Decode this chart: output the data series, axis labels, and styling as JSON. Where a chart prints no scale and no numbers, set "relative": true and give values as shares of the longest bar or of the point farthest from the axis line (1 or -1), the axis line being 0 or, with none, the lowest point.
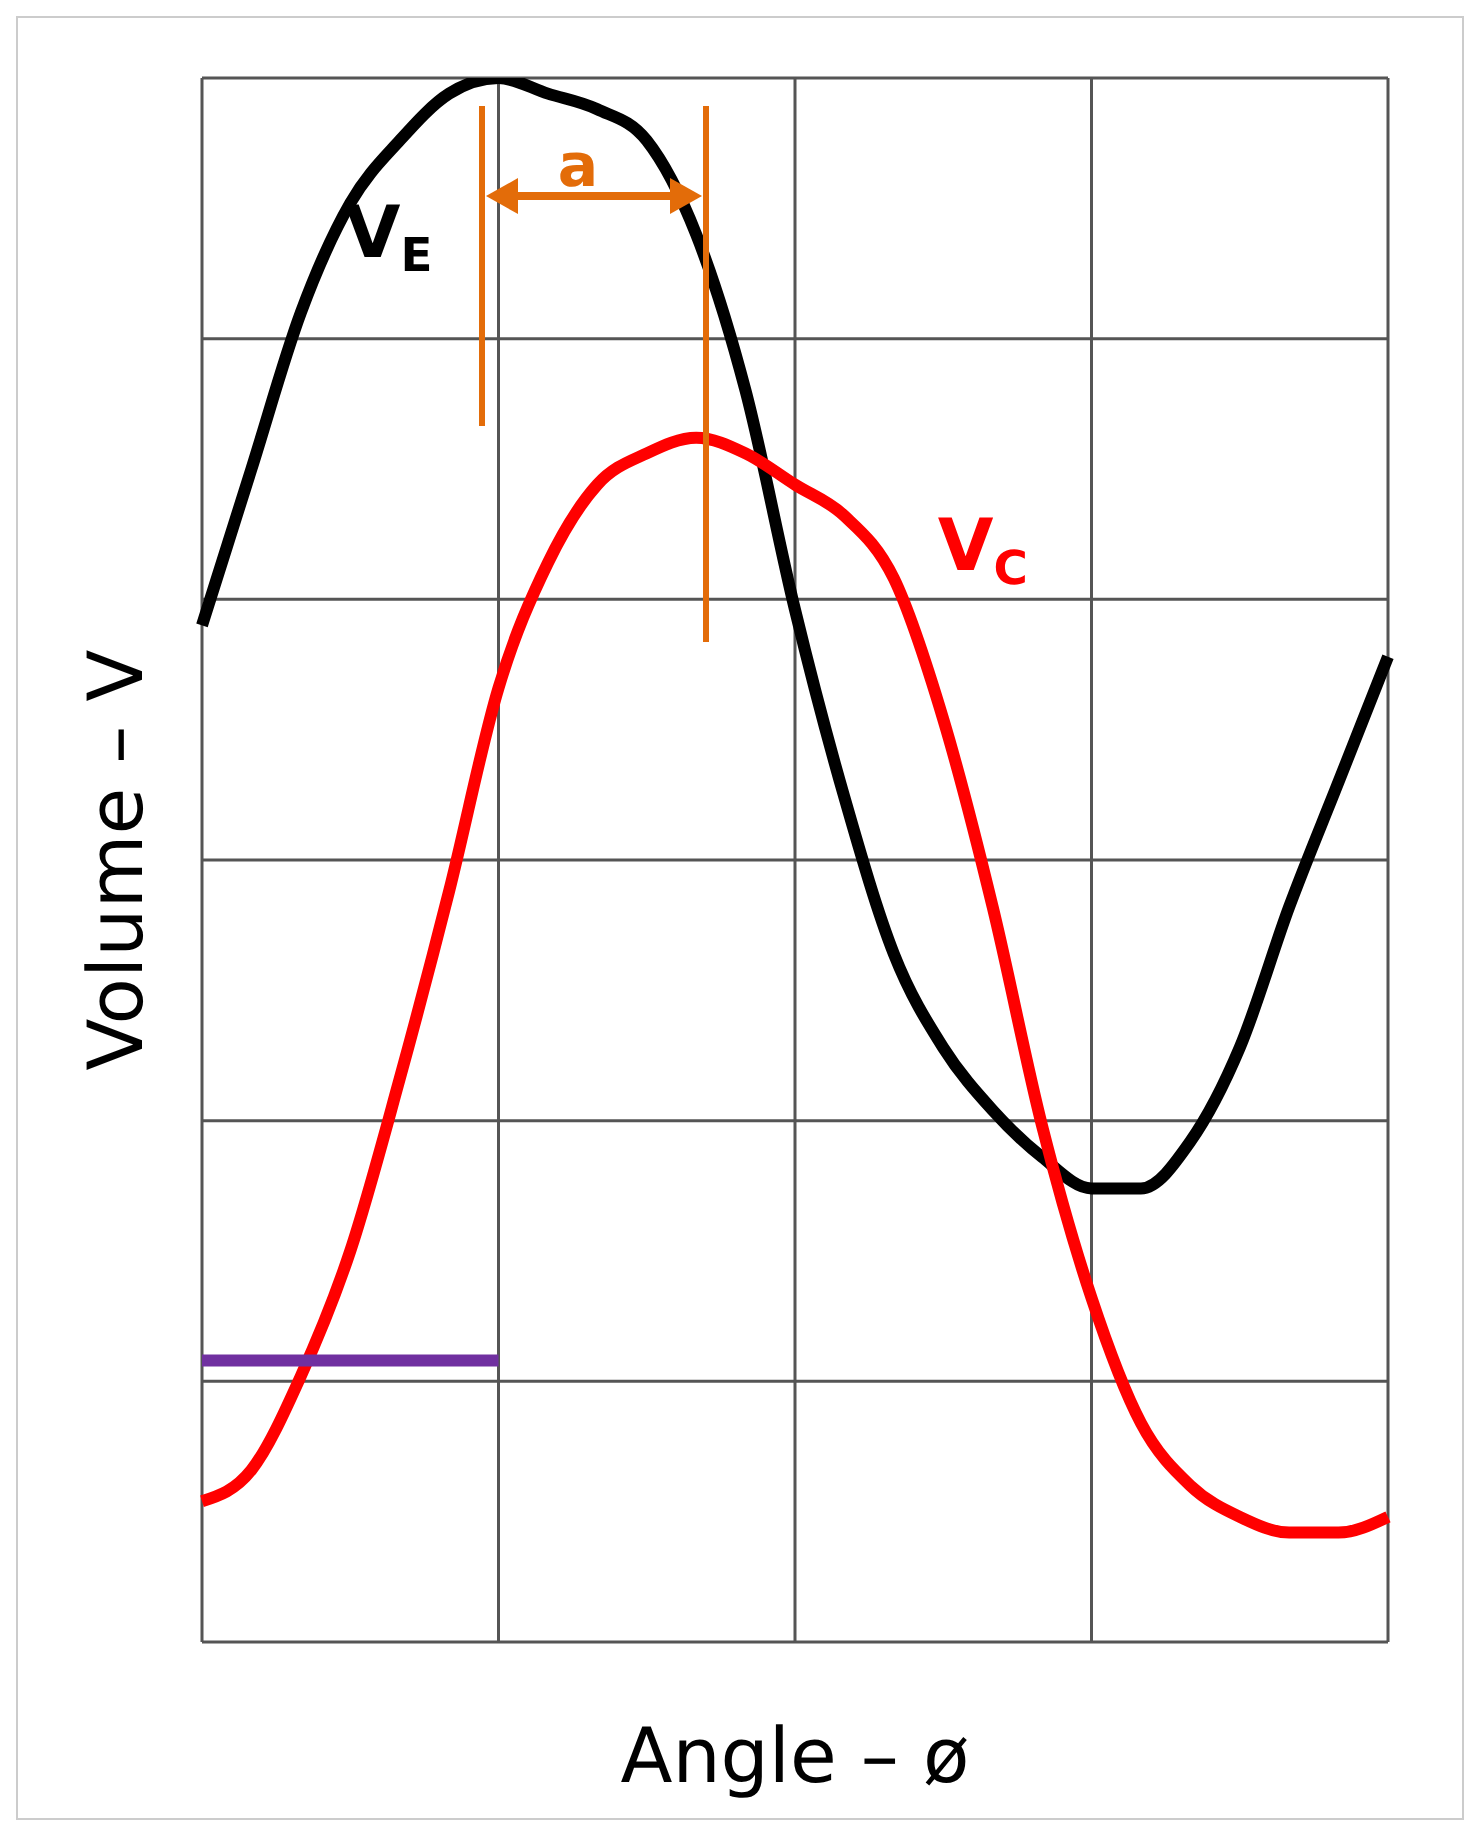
{
  "chart_data": {
    "type": "line",
    "relative": true,
    "xlabel": "Angle – ø",
    "ylabel": "Volume – V",
    "annotations": [
      "a"
    ],
    "categories": [
      null,
      null,
      null,
      null,
      null,
      null,
      null,
      null,
      null,
      null,
      null,
      null,
      null,
      null,
      null,
      null,
      null,
      null,
      null,
      null,
      null,
      null,
      null,
      null,
      null
    ],
    "series": [
      {
        "name": "V$_{E}$",
        "color": "#000000",
        "values": [
          0.65,
          0.75,
          0.85,
          0.92,
          0.96,
          0.99,
          1,
          0.99,
          0.98,
          0.96,
          0.9,
          0.8,
          0.66,
          0.54,
          0.44,
          0.38,
          0.34,
          0.31,
          0.29,
          0.29,
          0.32,
          0.38,
          0.47,
          0.55,
          0.63
        ]
      },
      {
        "name": "V$_{C}$",
        "color": "#ff0000",
        "values": [
          0.09,
          0.11,
          0.17,
          0.25,
          0.36,
          0.48,
          0.61,
          0.69,
          0.74,
          0.76,
          0.77,
          0.76,
          0.74,
          0.72,
          0.68,
          0.59,
          0.47,
          0.33,
          0.22,
          0.14,
          0.1,
          0.08,
          0.07,
          0.07,
          0.08
        ]
      },
      {
        "color": "#7030a0",
        "values": [
          0.18,
          0.18,
          0.18,
          0.18,
          0.18,
          0.18,
          0.18,
          null,
          null,
          null,
          null,
          null,
          null,
          null,
          null,
          null,
          null,
          null,
          null,
          null,
          null,
          null,
          null,
          null,
          null
        ]
      }
    ],
    "grid": true,
    "legend": false,
    "marker": "none",
    "line_style": "solid"
  }
}
